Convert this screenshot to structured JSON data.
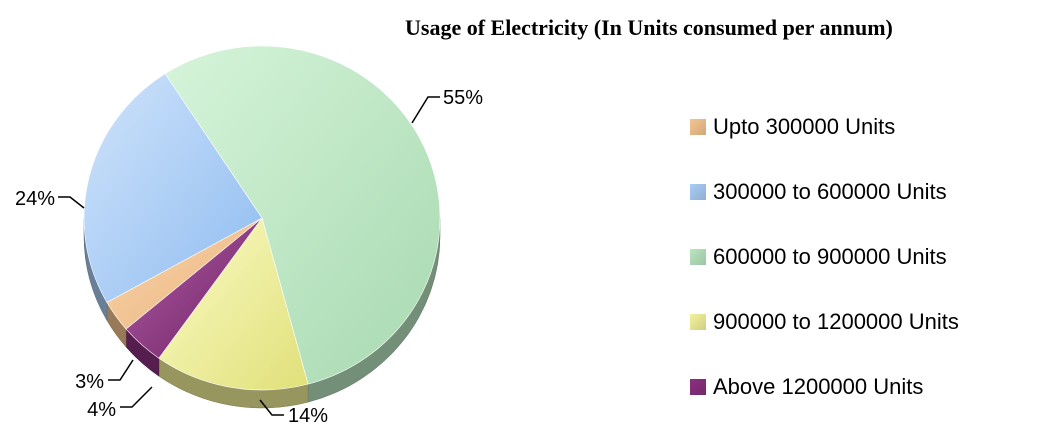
{
  "chart_data": {
    "type": "pie",
    "title": "Usage of Electricity (In Units consumed per annum)",
    "categories": [
      "Upto 300000 Units",
      "300000 to 600000 Units",
      "600000 to 900000 Units",
      "900000 to 1200000 Units",
      "Above 1200000 Units"
    ],
    "values": [
      3,
      24,
      55,
      14,
      4
    ],
    "labels": [
      "3%",
      "24%",
      "55%",
      "14%",
      "4%"
    ],
    "colors": [
      "#f5c590",
      "#a9cdf5",
      "#b9e6c0",
      "#f3f29a",
      "#8a2f7f"
    ],
    "legend": "right",
    "style": "3d-pie"
  }
}
